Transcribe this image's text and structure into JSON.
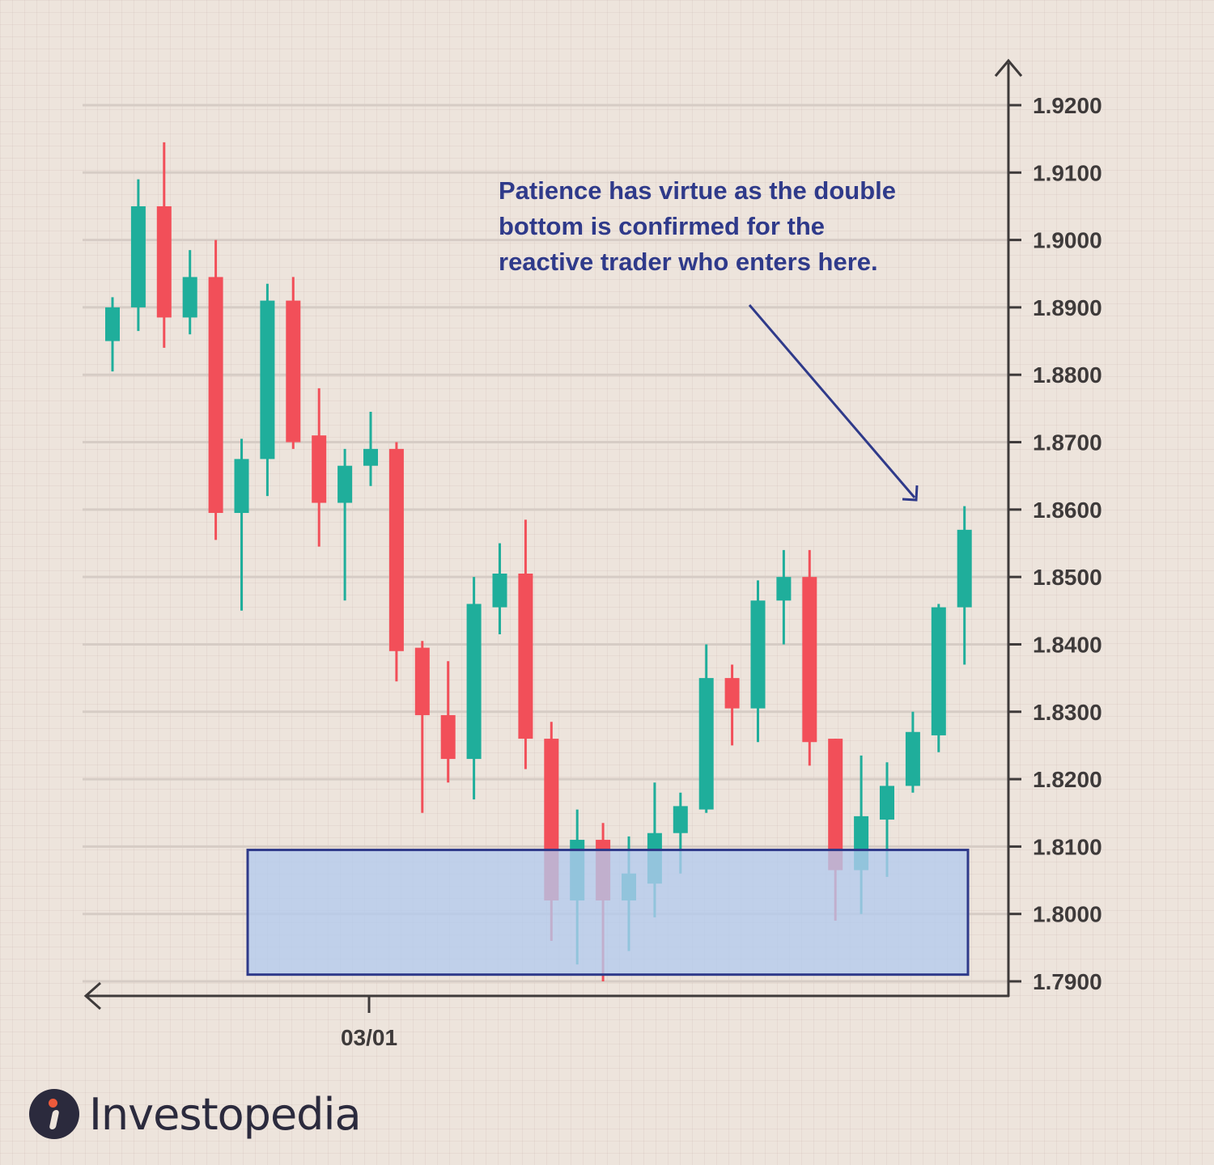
{
  "chart_data": {
    "type": "candlestick",
    "title": "",
    "y_ticks": [
      "1.9200",
      "1.9100",
      "1.9000",
      "1.8900",
      "1.8800",
      "1.8700",
      "1.8600",
      "1.8500",
      "1.8400",
      "1.8300",
      "1.8200",
      "1.8100",
      "1.8000",
      "1.7900"
    ],
    "ylim": [
      1.79,
      1.92
    ],
    "x_tick_label": "03/01",
    "candles": [
      {
        "open": 1.885,
        "high": 1.8915,
        "low": 1.8805,
        "close": 1.89
      },
      {
        "open": 1.89,
        "high": 1.909,
        "low": 1.8865,
        "close": 1.905
      },
      {
        "open": 1.905,
        "high": 1.9145,
        "low": 1.884,
        "close": 1.8885
      },
      {
        "open": 1.8885,
        "high": 1.8985,
        "low": 1.886,
        "close": 1.8945
      },
      {
        "open": 1.8945,
        "high": 1.9,
        "low": 1.8555,
        "close": 1.8595
      },
      {
        "open": 1.8595,
        "high": 1.8705,
        "low": 1.845,
        "close": 1.8675
      },
      {
        "open": 1.8675,
        "high": 1.8935,
        "low": 1.862,
        "close": 1.891
      },
      {
        "open": 1.891,
        "high": 1.8945,
        "low": 1.869,
        "close": 1.87
      },
      {
        "open": 1.871,
        "high": 1.878,
        "low": 1.8545,
        "close": 1.861
      },
      {
        "open": 1.861,
        "high": 1.869,
        "low": 1.8465,
        "close": 1.8665
      },
      {
        "open": 1.8665,
        "high": 1.8745,
        "low": 1.8635,
        "close": 1.869
      },
      {
        "open": 1.869,
        "high": 1.87,
        "low": 1.8345,
        "close": 1.839
      },
      {
        "open": 1.8395,
        "high": 1.8405,
        "low": 1.815,
        "close": 1.8295
      },
      {
        "open": 1.8295,
        "high": 1.8375,
        "low": 1.8195,
        "close": 1.823
      },
      {
        "open": 1.823,
        "high": 1.85,
        "low": 1.817,
        "close": 1.846
      },
      {
        "open": 1.8455,
        "high": 1.855,
        "low": 1.8415,
        "close": 1.8505
      },
      {
        "open": 1.8505,
        "high": 1.8585,
        "low": 1.8215,
        "close": 1.826
      },
      {
        "open": 1.826,
        "high": 1.8285,
        "low": 1.796,
        "close": 1.802
      },
      {
        "open": 1.802,
        "high": 1.8155,
        "low": 1.7925,
        "close": 1.811
      },
      {
        "open": 1.811,
        "high": 1.8135,
        "low": 1.79,
        "close": 1.802
      },
      {
        "open": 1.802,
        "high": 1.8115,
        "low": 1.7945,
        "close": 1.806
      },
      {
        "open": 1.8045,
        "high": 1.8195,
        "low": 1.7995,
        "close": 1.812
      },
      {
        "open": 1.812,
        "high": 1.818,
        "low": 1.806,
        "close": 1.816
      },
      {
        "open": 1.8155,
        "high": 1.84,
        "low": 1.815,
        "close": 1.835
      },
      {
        "open": 1.835,
        "high": 1.837,
        "low": 1.825,
        "close": 1.8305
      },
      {
        "open": 1.8305,
        "high": 1.8495,
        "low": 1.8255,
        "close": 1.8465
      },
      {
        "open": 1.8465,
        "high": 1.854,
        "low": 1.84,
        "close": 1.85
      },
      {
        "open": 1.85,
        "high": 1.854,
        "low": 1.822,
        "close": 1.8255
      },
      {
        "open": 1.826,
        "high": 1.826,
        "low": 1.799,
        "close": 1.8065
      },
      {
        "open": 1.8065,
        "high": 1.8235,
        "low": 1.8,
        "close": 1.8145
      },
      {
        "open": 1.814,
        "high": 1.8225,
        "low": 1.8055,
        "close": 1.819
      },
      {
        "open": 1.819,
        "high": 1.83,
        "low": 1.818,
        "close": 1.827
      },
      {
        "open": 1.8265,
        "high": 1.846,
        "low": 1.824,
        "close": 1.8455
      },
      {
        "open": 1.8455,
        "high": 1.8605,
        "low": 1.837,
        "close": 1.857
      }
    ],
    "support_zone": {
      "low": 1.791,
      "high": 1.8095
    },
    "annotation": [
      "Patience has virtue as the double",
      "bottom is confirmed for the",
      "reactive trader who enters here."
    ],
    "colors": {
      "up": "#1fae9b",
      "down": "#f24f59",
      "zone_fill": "#b4cbee",
      "zone_stroke": "#2f3a8a",
      "annotation": "#2f3a8a",
      "axis": "#3e3a3a",
      "gridline": "#d6ccc5"
    }
  },
  "brand": {
    "name": "Investopedia",
    "icon": "investopedia-logo-icon"
  }
}
